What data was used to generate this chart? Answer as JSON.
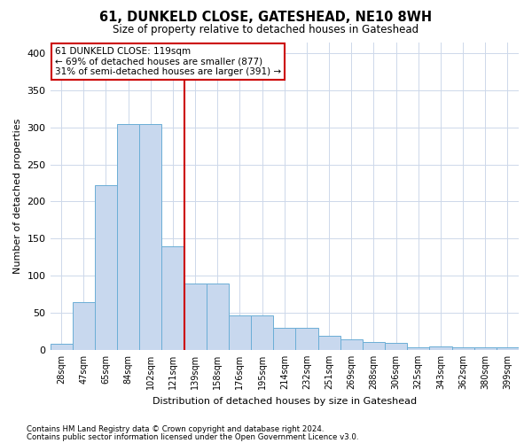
{
  "title": "61, DUNKELD CLOSE, GATESHEAD, NE10 8WH",
  "subtitle": "Size of property relative to detached houses in Gateshead",
  "xlabel": "Distribution of detached houses by size in Gateshead",
  "ylabel": "Number of detached properties",
  "bar_color": "#c8d8ee",
  "bar_edge_color": "#6baed6",
  "categories": [
    "28sqm",
    "47sqm",
    "65sqm",
    "84sqm",
    "102sqm",
    "121sqm",
    "139sqm",
    "158sqm",
    "176sqm",
    "195sqm",
    "214sqm",
    "232sqm",
    "251sqm",
    "269sqm",
    "288sqm",
    "306sqm",
    "325sqm",
    "343sqm",
    "362sqm",
    "380sqm",
    "399sqm"
  ],
  "values": [
    8,
    64,
    222,
    305,
    304,
    140,
    90,
    90,
    46,
    46,
    30,
    30,
    19,
    14,
    11,
    10,
    4,
    5,
    3,
    3,
    4
  ],
  "vline_x": 5.5,
  "vline_color": "#cc0000",
  "annotation_line1": "61 DUNKELD CLOSE: 119sqm",
  "annotation_line2": "← 69% of detached houses are smaller (877)",
  "annotation_line3": "31% of semi-detached houses are larger (391) →",
  "annotation_box_color": "#ffffff",
  "annotation_box_edge": "#cc0000",
  "ylim": [
    0,
    415
  ],
  "yticks": [
    0,
    50,
    100,
    150,
    200,
    250,
    300,
    350,
    400
  ],
  "footer1": "Contains HM Land Registry data © Crown copyright and database right 2024.",
  "footer2": "Contains public sector information licensed under the Open Government Licence v3.0.",
  "bg_color": "#ffffff",
  "grid_color": "#cdd8ea"
}
